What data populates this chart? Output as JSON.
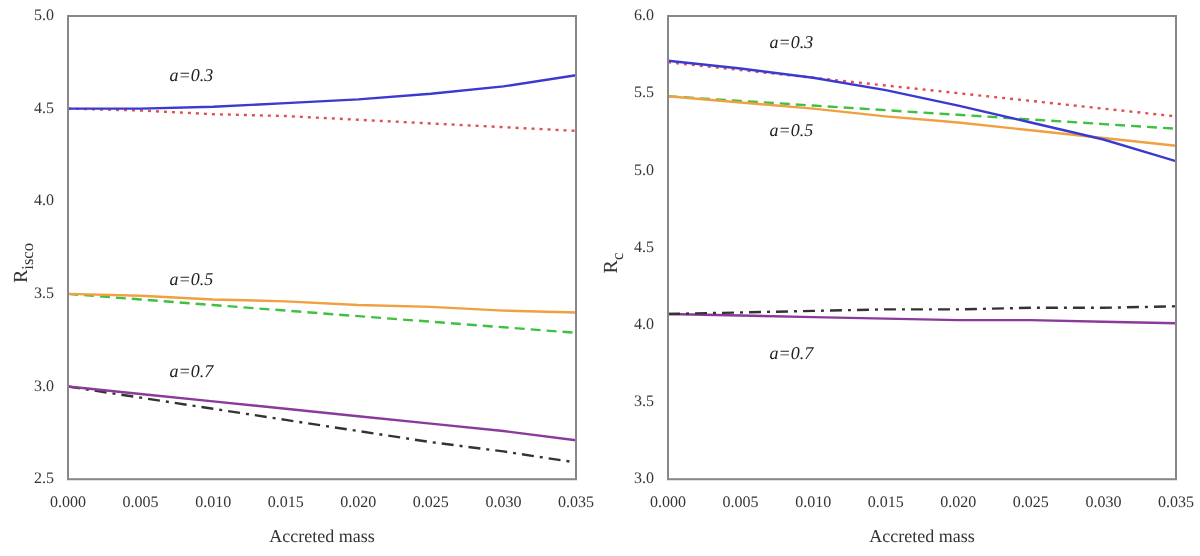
{
  "chart_data": [
    {
      "type": "line",
      "xlabel": "Accreted mass",
      "ylabel": "R$_{isco}$",
      "x": [
        0,
        0.005,
        0.01,
        0.015,
        0.02,
        0.025,
        0.03,
        0.035
      ],
      "xlim": [
        0,
        0.035
      ],
      "xticks": [
        {
          "value": 0,
          "label": "0.000"
        },
        {
          "value": 0.005,
          "label": "0.005"
        },
        {
          "value": 0.01,
          "label": "0.010"
        },
        {
          "value": 0.015,
          "label": "0.015"
        },
        {
          "value": 0.02,
          "label": "0.020"
        },
        {
          "value": 0.025,
          "label": "0.025"
        },
        {
          "value": 0.03,
          "label": "0.030"
        },
        {
          "value": 0.035,
          "label": "0.035"
        }
      ],
      "ylim": [
        2.5,
        5.0
      ],
      "yticks": [
        {
          "value": 2.5,
          "label": "2.5"
        },
        {
          "value": 3,
          "label": "3.0"
        },
        {
          "value": 3.5,
          "label": "3.5"
        },
        {
          "value": 4,
          "label": "4.0"
        },
        {
          "value": 4.5,
          "label": "4.5"
        },
        {
          "value": 5,
          "label": "5.0"
        }
      ],
      "grid": false,
      "legend": false,
      "marker": "none",
      "series": [
        {
          "color": "#3a3ad0",
          "line_style": "solid",
          "values": [
            4.5,
            4.5,
            4.51,
            4.53,
            4.55,
            4.58,
            4.62,
            4.68
          ]
        },
        {
          "color": "#e05050",
          "line_style": "dotted",
          "values": [
            4.5,
            4.49,
            4.47,
            4.46,
            4.44,
            4.42,
            4.4,
            4.38
          ]
        },
        {
          "color": "#f0a040",
          "line_style": "solid",
          "values": [
            3.5,
            3.49,
            3.47,
            3.46,
            3.44,
            3.43,
            3.41,
            3.4
          ]
        },
        {
          "color": "#40c040",
          "line_style": "dashed",
          "values": [
            3.5,
            3.47,
            3.44,
            3.41,
            3.38,
            3.35,
            3.32,
            3.29
          ]
        },
        {
          "color": "#8a3a9a",
          "line_style": "solid",
          "values": [
            3.0,
            2.96,
            2.92,
            2.88,
            2.84,
            2.8,
            2.76,
            2.71
          ]
        },
        {
          "color": "#333333",
          "line_style": "dashdot",
          "values": [
            3.0,
            2.94,
            2.88,
            2.82,
            2.76,
            2.7,
            2.65,
            2.59
          ]
        }
      ],
      "annotations": [
        "a=0.3",
        "a=0.5",
        "a=0.7"
      ]
    },
    {
      "type": "line",
      "xlabel": "Accreted mass",
      "ylabel": "R$_{c}$",
      "x": [
        0,
        0.005,
        0.01,
        0.015,
        0.02,
        0.025,
        0.03,
        0.035
      ],
      "xlim": [
        0,
        0.035
      ],
      "xticks": [
        {
          "value": 0,
          "label": "0.000"
        },
        {
          "value": 0.005,
          "label": "0.005"
        },
        {
          "value": 0.01,
          "label": "0.010"
        },
        {
          "value": 0.015,
          "label": "0.015"
        },
        {
          "value": 0.02,
          "label": "0.020"
        },
        {
          "value": 0.025,
          "label": "0.025"
        },
        {
          "value": 0.03,
          "label": "0.030"
        },
        {
          "value": 0.035,
          "label": "0.035"
        }
      ],
      "ylim": [
        3.0,
        6.0
      ],
      "yticks": [
        {
          "value": 3,
          "label": "3.0"
        },
        {
          "value": 3.5,
          "label": "3.5"
        },
        {
          "value": 4,
          "label": "4.0"
        },
        {
          "value": 4.5,
          "label": "4.5"
        },
        {
          "value": 5,
          "label": "5.0"
        },
        {
          "value": 5.5,
          "label": "5.5"
        },
        {
          "value": 6,
          "label": "6.0"
        }
      ],
      "grid": false,
      "legend": false,
      "marker": "none",
      "series": [
        {
          "color": "#3a3ad0",
          "line_style": "solid",
          "values": [
            5.71,
            5.66,
            5.6,
            5.52,
            5.42,
            5.31,
            5.2,
            5.06
          ]
        },
        {
          "color": "#e05050",
          "line_style": "dotted",
          "values": [
            5.7,
            5.65,
            5.6,
            5.55,
            5.5,
            5.45,
            5.4,
            5.35
          ]
        },
        {
          "color": "#f0a040",
          "line_style": "solid",
          "values": [
            5.48,
            5.44,
            5.4,
            5.35,
            5.31,
            5.26,
            5.21,
            5.16
          ]
        },
        {
          "color": "#40c040",
          "line_style": "dashed",
          "values": [
            5.48,
            5.45,
            5.42,
            5.39,
            5.36,
            5.33,
            5.3,
            5.27
          ]
        },
        {
          "color": "#333333",
          "line_style": "dashdot",
          "values": [
            4.07,
            4.08,
            4.09,
            4.1,
            4.1,
            4.11,
            4.11,
            4.12
          ]
        },
        {
          "color": "#8a3a9a",
          "line_style": "solid",
          "values": [
            4.07,
            4.06,
            4.05,
            4.04,
            4.03,
            4.03,
            4.02,
            4.01
          ]
        }
      ],
      "annotations": [
        "a=0.3",
        "a=0.5",
        "a=0.7"
      ]
    }
  ]
}
